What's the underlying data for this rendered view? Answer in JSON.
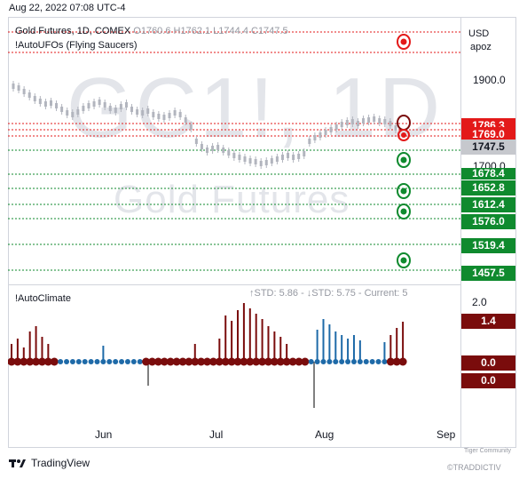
{
  "timestamp": "Aug 22, 2022 07:08 UTC-4",
  "legend": {
    "main": "Gold Futures, 1D, COMEX",
    "ohlc": " O1760.6  H1762.1  L1744.4  C1747.5",
    "indicator": "!AutoUFOs (Flying Saucers)"
  },
  "watermark": {
    "symbol": "GC1!, 1D",
    "name": "Gold Futures"
  },
  "scale": {
    "currency": "USD",
    "unit": "apoz"
  },
  "price_labels": {
    "p1900": "1900.0",
    "p1700": "1700.0"
  },
  "price_tags": {
    "red1": "1786.3",
    "red2": "1769.0",
    "current": "1747.5",
    "g1": "1678.4",
    "g2": "1652.8",
    "g3": "1612.4",
    "g4": "1576.0",
    "g5": "1519.4",
    "g6": "1457.5"
  },
  "indicator": {
    "title": "!AutoClimate",
    "std": "↑STD: 5.86 - ↓STD: 5.75 - Current: 5",
    "scale_top": "2.0",
    "tag_top": "1.4",
    "tag_zero1": "0.0",
    "tag_zero2": "0.0"
  },
  "dates": {
    "jun": "Jun",
    "jul": "Jul",
    "aug": "Aug",
    "sep": "Sep"
  },
  "brand": {
    "name": "TradingView",
    "tiger": "Tiger Community",
    "handle": "©TRADDICTIV"
  },
  "colors": {
    "green": "#0f8a2e",
    "red": "#e31919",
    "dark_red": "#7a0c0c",
    "blue": "#1e6aa8"
  }
}
